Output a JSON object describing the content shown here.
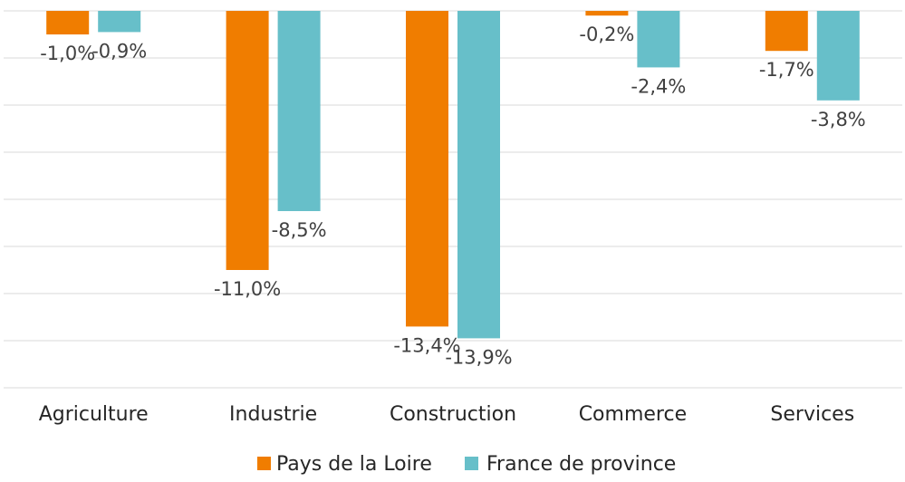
{
  "chart_data": {
    "type": "bar",
    "categories": [
      "Agriculture",
      "Industrie",
      "Construction",
      "Commerce",
      "Services"
    ],
    "series": [
      {
        "name": "Pays de la Loire",
        "values": [
          -1.0,
          -11.0,
          -13.4,
          -0.2,
          -1.7
        ],
        "labels": [
          "-1,0%",
          "-11,0%",
          "-13,4%",
          "-0,2%",
          "-1,7%"
        ],
        "color": "#F07D00"
      },
      {
        "name": "France de province",
        "values": [
          -0.9,
          -8.5,
          -13.9,
          -2.4,
          -3.8
        ],
        "labels": [
          "-0,9%",
          "-8,5%",
          "-13,9%",
          "-2,4%",
          "-3,8%"
        ],
        "color": "#67BFC9"
      }
    ],
    "ylim": [
      -16,
      0
    ],
    "grid": true,
    "legend": "bottom",
    "title": "",
    "xlabel": "",
    "ylabel": ""
  }
}
